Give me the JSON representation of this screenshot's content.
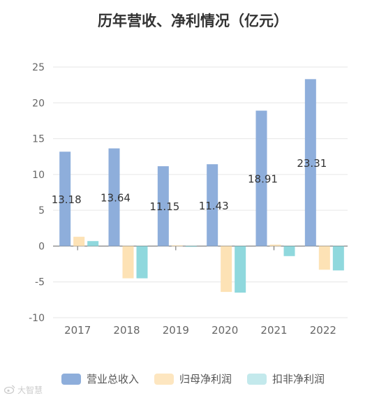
{
  "chart_data": {
    "type": "bar",
    "title": "历年营收、净利情况（亿元）",
    "categories": [
      "2017",
      "2018",
      "2019",
      "2020",
      "2021",
      "2022"
    ],
    "ylim": [
      -10,
      25
    ],
    "yticks": [
      25,
      20,
      15,
      10,
      5,
      0,
      -5,
      -10
    ],
    "grid": true,
    "legend": "bottom",
    "series": [
      {
        "name": "营业总收入",
        "color": "#8eaedb",
        "values": [
          13.18,
          13.64,
          11.15,
          11.43,
          18.91,
          23.31
        ],
        "labels": [
          "13.18",
          "13.64",
          "11.15",
          "11.43",
          "18.91",
          "23.31"
        ]
      },
      {
        "name": "归母净利润",
        "color": "#fde2b5",
        "values": [
          1.3,
          -4.5,
          0.1,
          -6.4,
          0.2,
          -3.3
        ]
      },
      {
        "name": "扣非净利润",
        "color": "#8fd8dd",
        "values": [
          0.7,
          -4.5,
          -0.1,
          -6.5,
          -1.4,
          -3.4
        ]
      }
    ]
  },
  "legend_items": [
    {
      "label": "营业总收入",
      "color": "#8eaedb"
    },
    {
      "label": "归母净利润",
      "color": "#fde6c0"
    },
    {
      "label": "扣非净利润",
      "color": "#c3e9ec"
    }
  ],
  "watermark": {
    "icon": "weibo-icon",
    "text": "大智慧"
  }
}
